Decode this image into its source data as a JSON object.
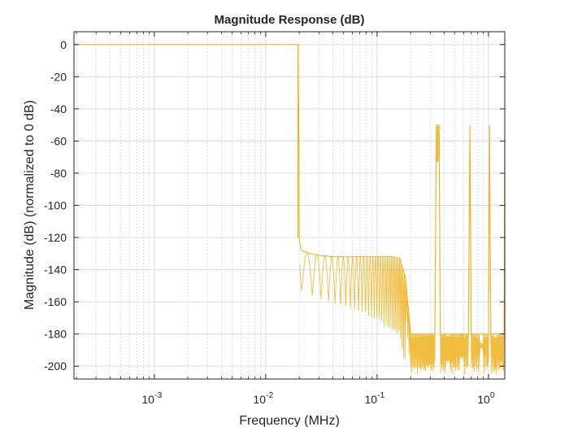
{
  "chart_data": {
    "type": "line",
    "title": "Magnitude Response (dB)",
    "xlabel": "Frequency (MHz)",
    "ylabel": "Magnitude (dB) (normalized to 0 dB)",
    "xscale": "log",
    "xlim": [
      0.00019,
      1.4
    ],
    "ylim": [
      -208,
      8
    ],
    "grid": true,
    "minor_grid": true,
    "legend": "none",
    "x_ticks": [
      {
        "value": 0.001,
        "base": "10",
        "exp": "-3"
      },
      {
        "value": 0.01,
        "base": "10",
        "exp": "-2"
      },
      {
        "value": 0.1,
        "base": "10",
        "exp": "-1"
      },
      {
        "value": 1,
        "base": "10",
        "exp": "0"
      }
    ],
    "y_ticks": [
      0,
      -20,
      -40,
      -60,
      -80,
      -100,
      -120,
      -140,
      -160,
      -180,
      -200
    ],
    "y_tick_labels": [
      "0",
      "-20",
      "-40",
      "-60",
      "-80",
      "-100",
      "-120",
      "-140",
      "-160",
      "-180",
      "-200"
    ],
    "series": [
      {
        "color": "#EDB120",
        "passband_edge_mhz": 0.0195,
        "x": [
          0.00019,
          0.0195,
          0.0199,
          0.02,
          0.0203,
          0.0207,
          0.021,
          0.025,
          0.03,
          0.04,
          0.05,
          0.06,
          0.07,
          0.08,
          0.1,
          0.12,
          0.14,
          0.16,
          0.18,
          0.2,
          0.25,
          0.3,
          0.33,
          0.34,
          0.36,
          0.37,
          0.5,
          0.66,
          0.68,
          0.7,
          0.9,
          1.0,
          1.02,
          1.05,
          1.2,
          1.38,
          1.4
        ],
        "y": [
          0,
          0,
          -60,
          -120,
          -124,
          -127,
          -128,
          -130,
          -131,
          -132,
          -132,
          -132,
          -132,
          -132,
          -132,
          -132,
          -132,
          -133,
          -145,
          -180,
          -180,
          -180,
          -180,
          -50,
          -50,
          -180,
          -180,
          -180,
          -50,
          -180,
          -180,
          -180,
          -50,
          -180,
          -180,
          -180,
          -50
        ]
      }
    ]
  }
}
